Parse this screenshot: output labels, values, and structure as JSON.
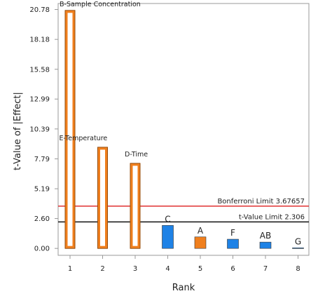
{
  "chart_data": {
    "type": "bar",
    "xlabel": "Rank",
    "ylabel": "t-Value of |Effect|",
    "x_ticks": [
      "1",
      "2",
      "3",
      "4",
      "5",
      "6",
      "7",
      "8"
    ],
    "y_ticks": [
      "0.00",
      "2.60",
      "5.19",
      "7.79",
      "10.39",
      "12.99",
      "15.58",
      "18.18",
      "20.78"
    ],
    "ylim": [
      -0.6,
      21.3
    ],
    "bars": [
      {
        "rank": 1,
        "label": "B-Sample Concentration",
        "value": 20.7,
        "color": "#f07f1d",
        "style": "outline"
      },
      {
        "rank": 2,
        "label": "E-Temperature",
        "value": 8.8,
        "color": "#f07f1d",
        "style": "outline"
      },
      {
        "rank": 3,
        "label": "D-Time",
        "value": 7.4,
        "color": "#f07f1d",
        "style": "outline"
      },
      {
        "rank": 4,
        "label": "C",
        "value": 2.0,
        "color": "#1e82e6",
        "style": "filled"
      },
      {
        "rank": 5,
        "label": "A",
        "value": 1.0,
        "color": "#f07f1d",
        "style": "filled"
      },
      {
        "rank": 6,
        "label": "F",
        "value": 0.8,
        "color": "#1e82e6",
        "style": "filled"
      },
      {
        "rank": 7,
        "label": "AB",
        "value": 0.55,
        "color": "#1e82e6",
        "style": "filled"
      },
      {
        "rank": 8,
        "label": "G",
        "value": 0.05,
        "color": "#1e82e6",
        "style": "filled"
      }
    ],
    "limits": [
      {
        "label": "Bonferroni Limit 3.67657",
        "value": 3.67657,
        "color": "#e03030"
      },
      {
        "label": "t-Value Limit 2.306",
        "value": 2.306,
        "color": "#111111"
      }
    ],
    "legend": "none",
    "grid": false
  }
}
